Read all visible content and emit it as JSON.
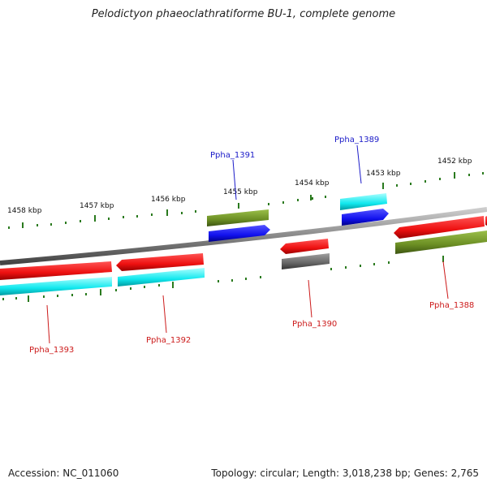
{
  "title": "Pelodictyon phaeoclathratiforme BU-1, complete genome",
  "footer": {
    "accession": "Accession: NC_011060",
    "stats": "Topology: circular; Length: 3,018,238 bp; Genes: 2,765"
  },
  "colors": {
    "backbone": "#888888",
    "ticks": "#2a7a1e",
    "tick_text": "#111111",
    "plus_label": "#1a1ac8",
    "minus_label": "#cc1a1a",
    "red": "#ee1111",
    "cyan": "#11e8ee",
    "olive": "#6b8e23",
    "blue": "#1111ee",
    "gray": "#666666"
  },
  "tick_labels": [
    "1458 kbp",
    "1457 kbp",
    "1456 kbp",
    "1455 kbp",
    "1454 kbp",
    "1453 kbp",
    "1452 kbp"
  ],
  "gene_labels": {
    "Ppha_1393": "Ppha_1393",
    "Ppha_1392": "Ppha_1392",
    "Ppha_1391": "Ppha_1391",
    "Ppha_1390": "Ppha_1390",
    "Ppha_1389": "Ppha_1389",
    "Ppha_1388": "Ppha_1388"
  }
}
